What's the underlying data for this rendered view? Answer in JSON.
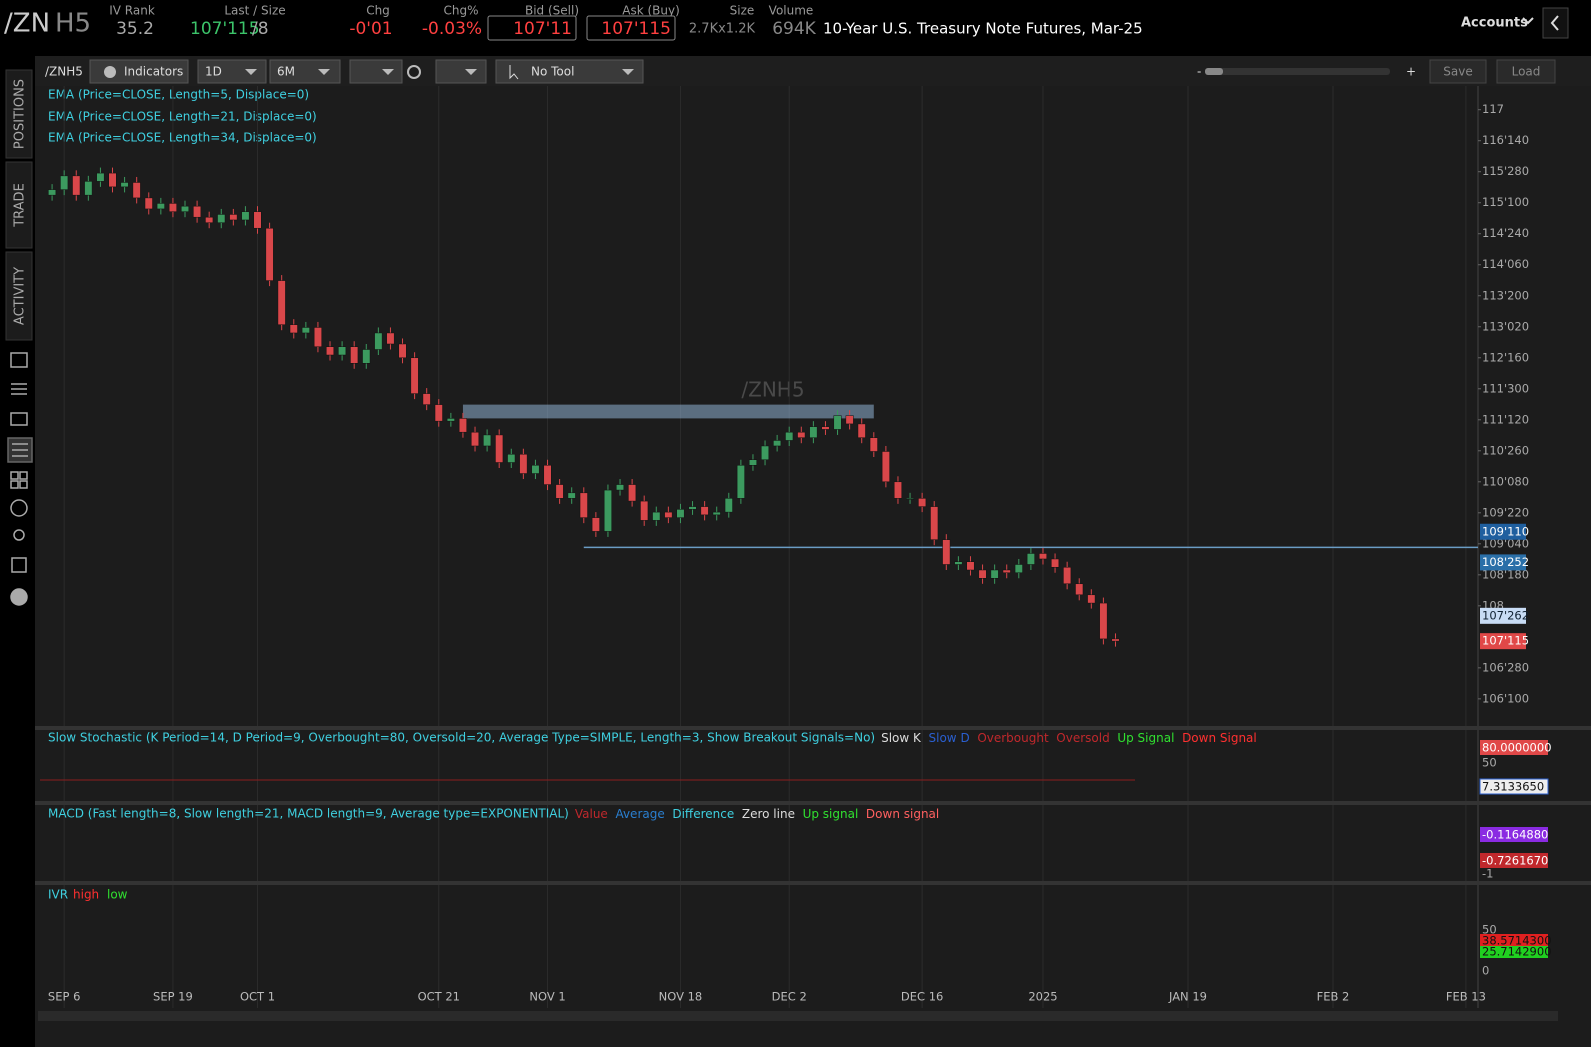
{
  "header": {
    "symbol_root": "/ZN",
    "symbol_suffix": "H5",
    "iv_rank_label": "IV Rank",
    "iv_rank": "35.2",
    "last_label": "Last / Size",
    "last": "107'115",
    "last_size": "/8",
    "chg_label": "Chg",
    "chg": "-0'01",
    "chg_pct_label": "Chg%",
    "chg_pct": "-0.03%",
    "bid_label": "Bid (Sell)",
    "bid": "107'11",
    "ask_label": "Ask (Buy)",
    "ask": "107'115",
    "size_label": "Size",
    "size": "2.7Kx1.2K",
    "volume_label": "Volume",
    "volume": "694K",
    "description": "10-Year U.S. Treasury Note Futures, Mar-25",
    "accounts": "Accounts"
  },
  "sidebar": {
    "tabs": [
      "POSITIONS",
      "TRADE",
      "ACTIVITY"
    ]
  },
  "toolbar": {
    "symbol": "/ZNH5",
    "indicators": "Indicators",
    "aggregation": "1D",
    "range": "6M",
    "tool": "No Tool",
    "zoom_out": "-",
    "zoom_in": "+",
    "save": "Save",
    "load": "Load"
  },
  "chart_data": {
    "type": "candlestick",
    "title": "/ZNH5",
    "studies": [
      "EMA (Price=CLOSE, Length=5, Displace=0)",
      "EMA (Price=CLOSE, Length=21, Displace=0)",
      "EMA (Price=CLOSE, Length=34, Displace=0)"
    ],
    "up_color": "#3c9a5f",
    "down_color": "#d9474a",
    "open": [
      115.45,
      115.55,
      115.8,
      115.45,
      115.7,
      115.85,
      115.6,
      115.68,
      115.4,
      115.2,
      115.3,
      115.15,
      115.25,
      115.05,
      114.95,
      115.1,
      115.0,
      115.15,
      114.85,
      113.9,
      113.1,
      112.95,
      113.05,
      112.7,
      112.55,
      112.7,
      112.4,
      112.65,
      112.95,
      112.75,
      112.5,
      111.85,
      111.65,
      111.35,
      111.4,
      111.15,
      110.9,
      111.1,
      110.6,
      110.75,
      110.4,
      110.55,
      110.2,
      109.95,
      110.05,
      109.6,
      109.35,
      110.1,
      110.2,
      109.9,
      109.55,
      109.7,
      109.6,
      109.75,
      109.8,
      109.65,
      109.7,
      109.95,
      110.55,
      110.65,
      110.9,
      111.0,
      111.15,
      111.05,
      111.25,
      111.2,
      111.45,
      111.3,
      111.05,
      110.8,
      110.25,
      109.95,
      109.95,
      109.8,
      109.2,
      108.75,
      108.8,
      108.65,
      108.5,
      108.65,
      108.6,
      108.75,
      108.95,
      108.85,
      108.7,
      108.4,
      108.2,
      108.05,
      107.4
    ],
    "high": [
      115.65,
      115.9,
      115.9,
      115.8,
      115.95,
      115.95,
      115.78,
      115.78,
      115.5,
      115.4,
      115.4,
      115.35,
      115.35,
      115.15,
      115.2,
      115.2,
      115.25,
      115.25,
      114.95,
      114.0,
      113.2,
      113.15,
      113.15,
      112.8,
      112.8,
      112.8,
      112.75,
      113.05,
      113.05,
      112.85,
      112.6,
      111.95,
      111.75,
      111.5,
      111.5,
      111.25,
      111.2,
      111.2,
      110.85,
      110.85,
      110.65,
      110.65,
      110.3,
      110.15,
      110.15,
      109.7,
      110.2,
      110.3,
      110.3,
      110.0,
      109.8,
      109.8,
      109.85,
      109.9,
      109.9,
      109.8,
      110.05,
      110.65,
      110.75,
      111.0,
      111.1,
      111.25,
      111.25,
      111.35,
      111.35,
      111.55,
      111.55,
      111.4,
      111.15,
      110.9,
      110.35,
      110.05,
      110.05,
      109.9,
      109.3,
      108.9,
      108.9,
      108.75,
      108.75,
      108.75,
      108.85,
      109.05,
      109.05,
      108.95,
      108.8,
      108.5,
      108.3,
      108.15,
      107.5
    ],
    "low": [
      115.35,
      115.45,
      115.35,
      115.35,
      115.6,
      115.5,
      115.5,
      115.3,
      115.1,
      115.1,
      115.05,
      115.05,
      114.95,
      114.85,
      114.85,
      114.9,
      114.9,
      114.75,
      113.8,
      113.0,
      112.85,
      112.85,
      112.6,
      112.45,
      112.45,
      112.3,
      112.3,
      112.55,
      112.65,
      112.4,
      111.75,
      111.55,
      111.25,
      111.25,
      111.05,
      110.8,
      110.8,
      110.5,
      110.5,
      110.3,
      110.3,
      110.1,
      109.85,
      109.85,
      109.5,
      109.25,
      109.25,
      110.0,
      109.8,
      109.45,
      109.45,
      109.5,
      109.5,
      109.65,
      109.55,
      109.55,
      109.6,
      109.85,
      110.45,
      110.55,
      110.8,
      110.9,
      110.95,
      110.95,
      111.1,
      111.1,
      111.2,
      110.95,
      110.7,
      110.15,
      109.85,
      109.85,
      109.7,
      109.1,
      108.65,
      108.65,
      108.55,
      108.4,
      108.4,
      108.5,
      108.5,
      108.65,
      108.75,
      108.6,
      108.3,
      108.1,
      107.95,
      107.3,
      107.26
    ],
    "close": [
      115.55,
      115.8,
      115.45,
      115.7,
      115.85,
      115.6,
      115.68,
      115.4,
      115.2,
      115.3,
      115.15,
      115.25,
      115.05,
      114.95,
      115.1,
      115.0,
      115.15,
      114.85,
      113.9,
      113.1,
      112.95,
      113.05,
      112.7,
      112.55,
      112.7,
      112.4,
      112.65,
      112.95,
      112.75,
      112.5,
      111.85,
      111.65,
      111.35,
      111.4,
      111.15,
      110.9,
      111.1,
      110.6,
      110.75,
      110.4,
      110.55,
      110.2,
      109.95,
      110.05,
      109.6,
      109.35,
      110.1,
      110.2,
      109.9,
      109.55,
      109.7,
      109.6,
      109.75,
      109.8,
      109.65,
      109.7,
      109.95,
      110.55,
      110.65,
      110.9,
      111.0,
      111.15,
      111.05,
      111.25,
      111.2,
      111.45,
      111.3,
      111.05,
      110.8,
      110.25,
      109.95,
      109.95,
      109.8,
      109.2,
      108.75,
      108.8,
      108.65,
      108.5,
      108.65,
      108.6,
      108.75,
      108.95,
      108.85,
      108.7,
      108.4,
      108.2,
      108.05,
      107.4,
      107.36
    ],
    "xlim": [
      -1,
      118
    ],
    "xticks": [
      {
        "value": 1,
        "label": "SEP 6"
      },
      {
        "value": 10,
        "label": "SEP 19"
      },
      {
        "value": 17,
        "label": "OCT 1"
      },
      {
        "value": 32,
        "label": "OCT 21"
      },
      {
        "value": 41,
        "label": "NOV 1"
      },
      {
        "value": 52,
        "label": "NOV 18"
      },
      {
        "value": 61,
        "label": "DEC 2"
      },
      {
        "value": 72,
        "label": "DEC 16"
      },
      {
        "value": 82,
        "label": "2025"
      },
      {
        "value": 94,
        "label": "JAN 19"
      },
      {
        "value": 106,
        "label": "FEB 2"
      },
      {
        "value": 117,
        "label": "FEB 13"
      }
    ],
    "ylim": [
      105.82,
      117.43
    ],
    "yticks": [
      117,
      {
        "value": 116.4375,
        "label": "116'140"
      },
      {
        "value": 115.875,
        "label": "115'280"
      },
      {
        "value": 115.3125,
        "label": "115'100"
      },
      {
        "value": 114.75,
        "label": "114'240"
      },
      {
        "value": 114.1875,
        "label": "114'060"
      },
      {
        "value": 113.625,
        "label": "113'200"
      },
      {
        "value": 113.0625,
        "label": "113'020"
      },
      {
        "value": 112.5,
        "label": "112'160"
      },
      {
        "value": 111.9375,
        "label": "111'300"
      },
      {
        "value": 111.375,
        "label": "111'120"
      },
      {
        "value": 110.8125,
        "label": "110'260"
      },
      {
        "value": 110.25,
        "label": "110'080"
      },
      {
        "value": 109.6875,
        "label": "109'220"
      },
      {
        "value": 109.125,
        "label": "109'040"
      },
      {
        "value": 108.5625,
        "label": "108'180"
      },
      108,
      {
        "value": 106.875,
        "label": "106'280"
      },
      {
        "value": 106.3125,
        "label": "106'100"
      }
    ],
    "price_markers": [
      {
        "value": 109.34375,
        "label": "109'110",
        "color": "#1f5f9f"
      },
      {
        "value": 108.7875,
        "label": "108'252",
        "color": "#2a6fa8"
      },
      {
        "value": 107.81875,
        "label": "107'262",
        "color": "#c8dcf5"
      },
      {
        "value": 107.359,
        "label": "107'115",
        "color": "#e04848"
      }
    ],
    "support_level": 109.06,
    "zone": {
      "low": 111.4,
      "high": 111.65
    }
  },
  "lower_panels": {
    "stochastic": {
      "title": "Slow Stochastic (K Period=14, D Period=9, Overbought=80, Oversold=20, Average Type=SIMPLE, Length=3, Show Breakout Signals=No)",
      "legend": [
        "Slow K",
        "Slow D",
        "Overbought",
        "Oversold",
        "Up Signal",
        "Down Signal"
      ],
      "axis_label": "50",
      "markers": [
        "80.0000000",
        "7.3133650"
      ]
    },
    "macd": {
      "title": "MACD (Fast length=8, Slow length=21, MACD length=9, Average type=EXPONENTIAL)",
      "legend": [
        "Value",
        "Average",
        "Difference",
        "Zero line",
        "Up signal",
        "Down signal"
      ],
      "axis_label": "-1",
      "markers": [
        "-0.1164880",
        "-0.7261670"
      ]
    },
    "ivr": {
      "title": "IVR",
      "legend": [
        "high",
        "low"
      ],
      "axis_labels": [
        "50",
        "0"
      ],
      "markers": [
        "38.5714300",
        "25.7142900"
      ]
    }
  }
}
